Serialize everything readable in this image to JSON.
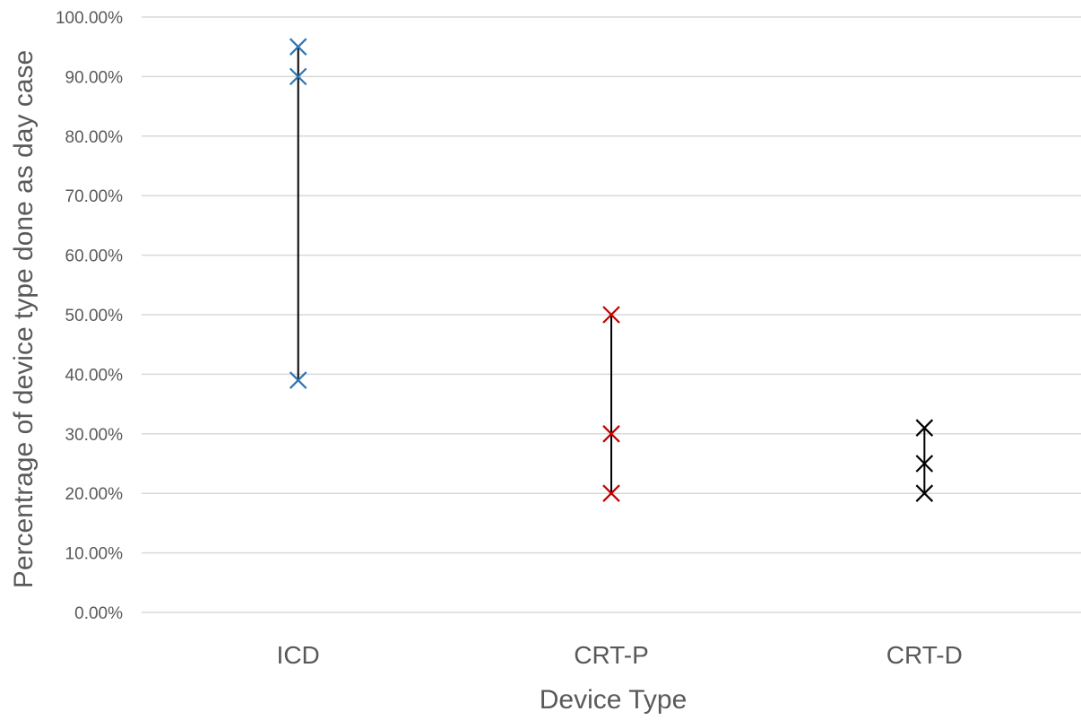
{
  "chart_data": {
    "type": "scatter",
    "title": "",
    "xlabel": "Device Type",
    "ylabel": "Percentrage of device type done as day case",
    "ylim": [
      0,
      100
    ],
    "y_ticks": [
      "0.00%",
      "10.00%",
      "20.00%",
      "30.00%",
      "40.00%",
      "50.00%",
      "60.00%",
      "70.00%",
      "80.00%",
      "90.00%",
      "100.00%"
    ],
    "y_tick_values": [
      0,
      10,
      20,
      30,
      40,
      50,
      60,
      70,
      80,
      90,
      100
    ],
    "categories": [
      "ICD",
      "CRT-P",
      "CRT-D"
    ],
    "grid": true,
    "legend": "none",
    "series": [
      {
        "category": "ICD",
        "values": [
          95,
          90,
          39
        ],
        "color": "#2e75b6"
      },
      {
        "category": "CRT-P",
        "values": [
          50,
          30,
          20
        ],
        "color": "#c00000"
      },
      {
        "category": "CRT-D",
        "values": [
          31,
          25,
          20
        ],
        "color": "#000000"
      }
    ],
    "range_line_color": "#000000",
    "gridline_color": "#d9d9d9",
    "marker": "x-cross"
  }
}
